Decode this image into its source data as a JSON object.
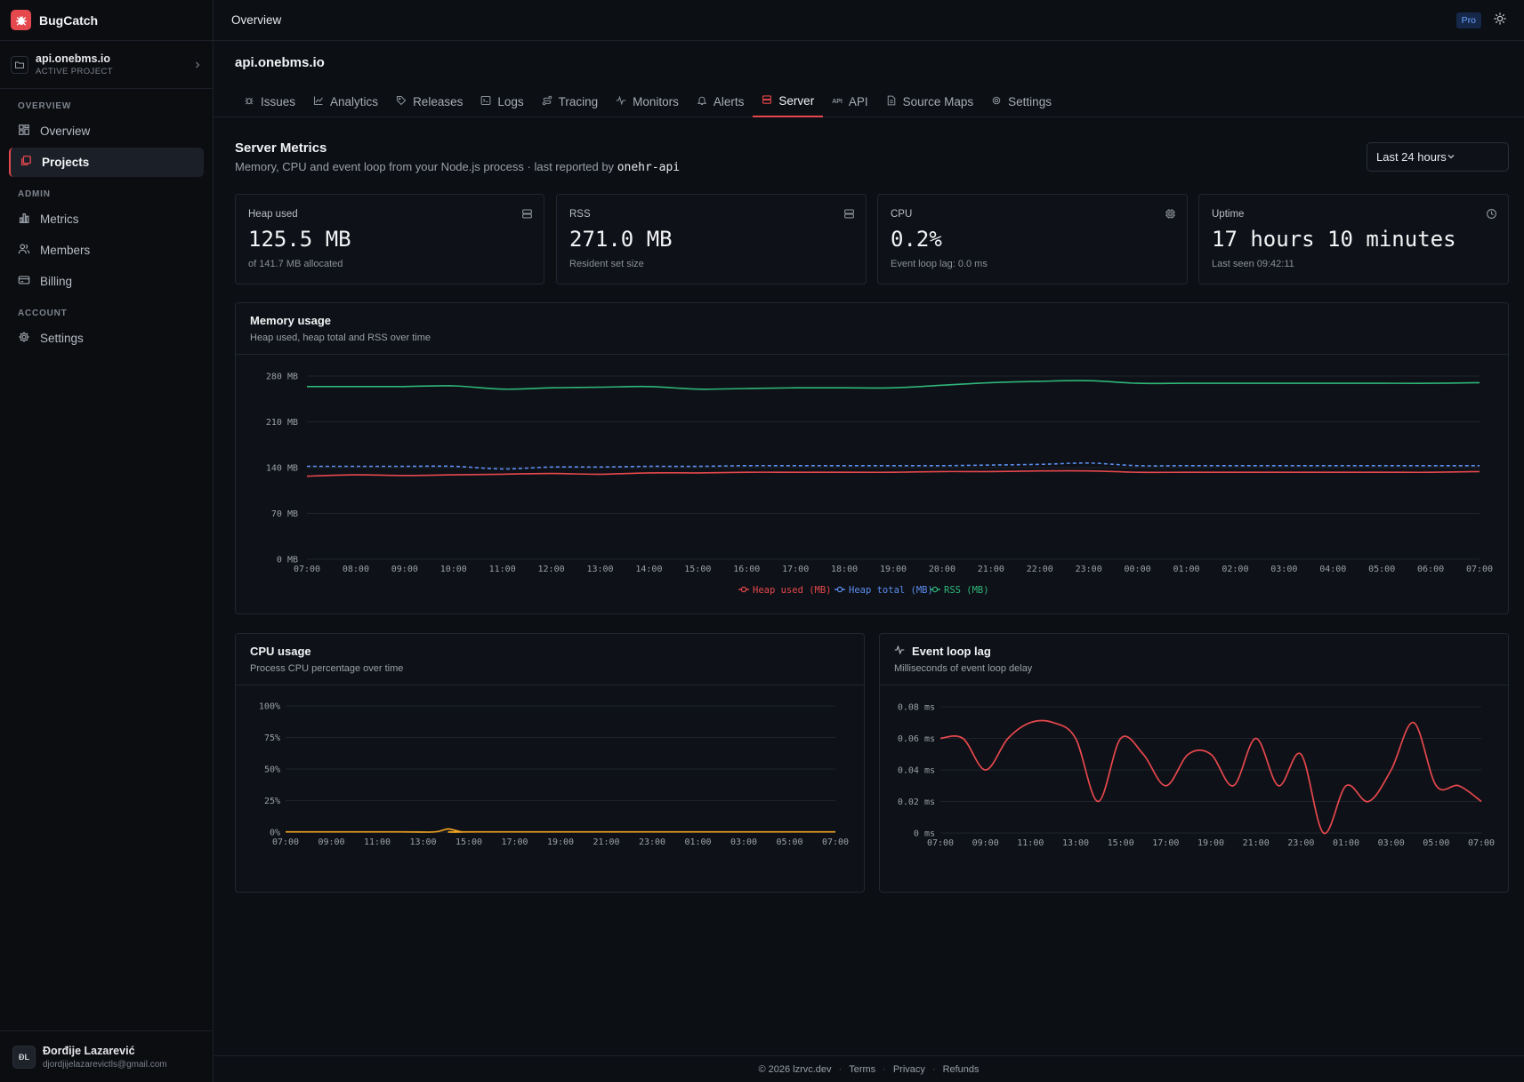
{
  "app": {
    "name": "BugCatch"
  },
  "project_switcher": {
    "name": "api.onebms.io",
    "subtitle": "ACTIVE PROJECT"
  },
  "sidebar": {
    "sections": [
      {
        "title": "OVERVIEW",
        "items": [
          {
            "label": "Overview",
            "icon": "grid-icon"
          },
          {
            "label": "Projects",
            "icon": "projects-icon",
            "active": true
          }
        ]
      },
      {
        "title": "ADMIN",
        "items": [
          {
            "label": "Metrics",
            "icon": "bar-chart-icon"
          },
          {
            "label": "Members",
            "icon": "users-icon"
          },
          {
            "label": "Billing",
            "icon": "credit-card-icon"
          }
        ]
      },
      {
        "title": "ACCOUNT",
        "items": [
          {
            "label": "Settings",
            "icon": "gear-icon"
          }
        ]
      }
    ]
  },
  "user": {
    "initials": "ĐL",
    "name": "Đorđije Lazarević",
    "email": "djordjijelazarevictls@gmail.com"
  },
  "topbar": {
    "breadcrumb": "Overview",
    "plan_badge": "Pro"
  },
  "project": {
    "title": "api.onebms.io",
    "tabs": [
      {
        "label": "Issues",
        "icon": "bug-icon"
      },
      {
        "label": "Analytics",
        "icon": "analytics-icon"
      },
      {
        "label": "Releases",
        "icon": "tag-icon"
      },
      {
        "label": "Logs",
        "icon": "terminal-icon"
      },
      {
        "label": "Tracing",
        "icon": "route-icon"
      },
      {
        "label": "Monitors",
        "icon": "pulse-icon"
      },
      {
        "label": "Alerts",
        "icon": "bell-icon"
      },
      {
        "label": "Server",
        "icon": "server-icon",
        "active": true
      },
      {
        "label": "API",
        "icon": "api-icon"
      },
      {
        "label": "Source Maps",
        "icon": "file-icon"
      },
      {
        "label": "Settings",
        "icon": "gear-icon"
      }
    ]
  },
  "server": {
    "title": "Server Metrics",
    "subtitle": "Memory, CPU and event loop from your Node.js process · last reported by",
    "reporter": "onehr-api",
    "range": "Last 24 hours"
  },
  "stats": [
    {
      "label": "Heap used",
      "value": "125.5 MB",
      "sub": "of 141.7 MB allocated",
      "icon": "server-icon"
    },
    {
      "label": "RSS",
      "value": "271.0 MB",
      "sub": "Resident set size",
      "icon": "server-icon"
    },
    {
      "label": "CPU",
      "value": "0.2%",
      "sub": "Event loop lag: 0.0 ms",
      "icon": "cpu-icon"
    },
    {
      "label": "Uptime",
      "value": "17 hours 10 minutes",
      "sub": "Last seen 09:42:11",
      "icon": "clock-icon"
    }
  ],
  "memory_panel": {
    "title": "Memory usage",
    "subtitle": "Heap used, heap total and RSS over time"
  },
  "cpu_panel": {
    "title": "CPU usage",
    "subtitle": "Process CPU percentage over time"
  },
  "lag_panel": {
    "title": "Event loop lag",
    "subtitle": "Milliseconds of event loop delay"
  },
  "colors": {
    "heap_used": "#e5484d",
    "heap_total": "#5b8def",
    "rss": "#2fb67a",
    "cpu": "#f5a623",
    "lag": "#e5484d"
  },
  "footer": {
    "copyright": "© 2026 lzrvc.dev",
    "links": [
      "Terms",
      "Privacy",
      "Refunds"
    ]
  },
  "chart_data": [
    {
      "type": "line",
      "x": [
        "07:00",
        "08:00",
        "09:00",
        "10:00",
        "11:00",
        "12:00",
        "13:00",
        "14:00",
        "15:00",
        "16:00",
        "17:00",
        "18:00",
        "19:00",
        "20:00",
        "21:00",
        "22:00",
        "23:00",
        "00:00",
        "01:00",
        "02:00",
        "03:00",
        "04:00",
        "05:00",
        "06:00",
        "07:00"
      ],
      "y_ticks": [
        "0 MB",
        "70 MB",
        "140 MB",
        "210 MB",
        "280 MB"
      ],
      "ylim": [
        0,
        280
      ],
      "series": [
        {
          "name": "Heap used (MB)",
          "dashed": false,
          "values": [
            127,
            129,
            128,
            129,
            130,
            131,
            130,
            132,
            132,
            133,
            133,
            133,
            133,
            134,
            134,
            135,
            135,
            133,
            133,
            133,
            133,
            133,
            133,
            133,
            134
          ]
        },
        {
          "name": "Heap total (MB)",
          "dashed": true,
          "values": [
            142,
            142,
            142,
            142,
            138,
            141,
            141,
            142,
            142,
            143,
            143,
            143,
            143,
            143,
            144,
            145,
            147,
            143,
            143,
            143,
            143,
            143,
            143,
            143,
            143
          ]
        },
        {
          "name": "RSS (MB)",
          "dashed": false,
          "values": [
            264,
            264,
            264,
            265,
            260,
            262,
            263,
            264,
            260,
            261,
            262,
            262,
            262,
            266,
            270,
            272,
            273,
            269,
            269,
            269,
            269,
            269,
            269,
            269,
            270
          ]
        }
      ]
    },
    {
      "type": "line",
      "x": [
        "07:00",
        "09:00",
        "11:00",
        "13:00",
        "15:00",
        "17:00",
        "19:00",
        "21:00",
        "23:00",
        "01:00",
        "03:00",
        "05:00",
        "07:00"
      ],
      "y_ticks": [
        "0%",
        "25%",
        "50%",
        "75%",
        "100%"
      ],
      "ylim": [
        0,
        100
      ],
      "points": [
        [
          0,
          0.2
        ],
        [
          5,
          0.2
        ],
        [
          6.5,
          0.2
        ],
        [
          7.1,
          2.5
        ],
        [
          7.7,
          0.2
        ],
        [
          8.5,
          0.2
        ],
        [
          24,
          0.2
        ]
      ]
    },
    {
      "type": "line",
      "x": [
        "07:00",
        "09:00",
        "11:00",
        "13:00",
        "15:00",
        "17:00",
        "19:00",
        "21:00",
        "23:00",
        "01:00",
        "03:00",
        "05:00",
        "07:00"
      ],
      "y_ticks": [
        "0 ms",
        "0.02 ms",
        "0.04 ms",
        "0.06 ms",
        "0.08 ms"
      ],
      "ylim": [
        0,
        0.08
      ],
      "points": [
        [
          0,
          0.06
        ],
        [
          1,
          0.06
        ],
        [
          2,
          0.04
        ],
        [
          3,
          0.06
        ],
        [
          4,
          0.07
        ],
        [
          5,
          0.07
        ],
        [
          6,
          0.06
        ],
        [
          7,
          0.02
        ],
        [
          8,
          0.06
        ],
        [
          9,
          0.05
        ],
        [
          10,
          0.03
        ],
        [
          11,
          0.05
        ],
        [
          12,
          0.05
        ],
        [
          13,
          0.03
        ],
        [
          14,
          0.06
        ],
        [
          15,
          0.03
        ],
        [
          16,
          0.05
        ],
        [
          17,
          0
        ],
        [
          18,
          0.03
        ],
        [
          19,
          0.02
        ],
        [
          20,
          0.04
        ],
        [
          21,
          0.07
        ],
        [
          22,
          0.03
        ],
        [
          23,
          0.03
        ],
        [
          24,
          0.02
        ]
      ]
    }
  ]
}
